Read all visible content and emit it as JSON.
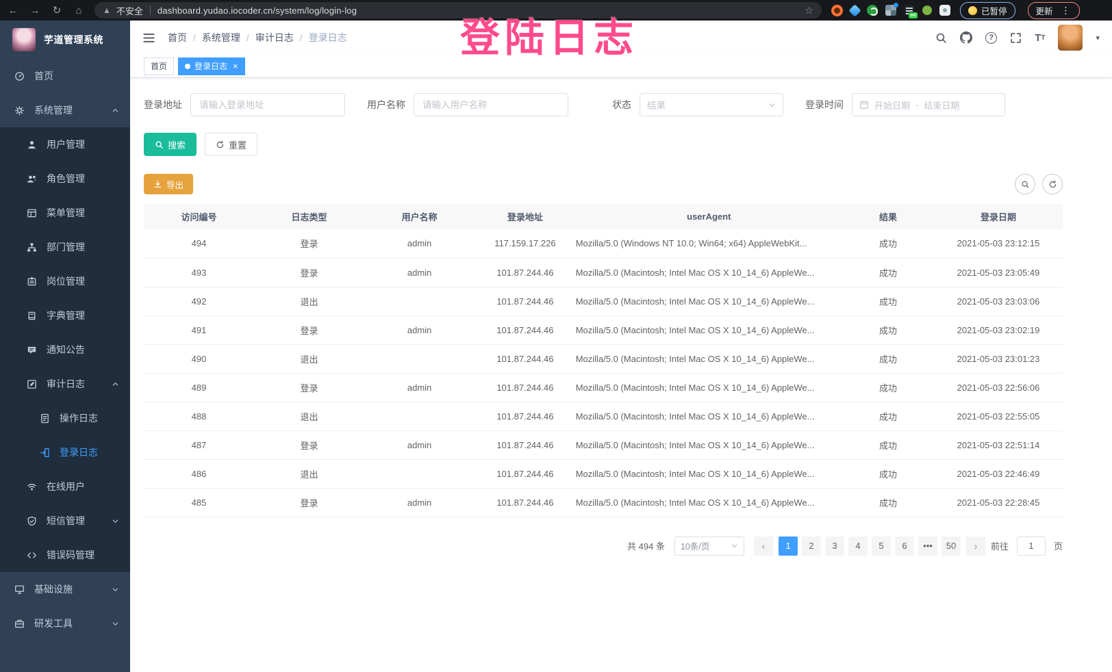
{
  "browser": {
    "security_label": "不安全",
    "url": "dashboard.yudao.iocoder.cn/system/log/login-log",
    "paused_badge": "已暂停",
    "update_badge": "更新"
  },
  "watermark_text": "登陆日志",
  "sidebar": {
    "app_title": "芋道管理系统",
    "items": [
      {
        "key": "home",
        "label": "首页",
        "icon": "dashboard-icon",
        "level": 1
      },
      {
        "key": "system-management",
        "label": "系统管理",
        "icon": "gear-icon",
        "level": 1,
        "arrow": "up"
      },
      {
        "key": "user-management",
        "label": "用户管理",
        "icon": "user-icon",
        "level": 2
      },
      {
        "key": "role-management",
        "label": "角色管理",
        "icon": "roles-icon",
        "level": 2
      },
      {
        "key": "menu-management",
        "label": "菜单管理",
        "icon": "menu-icon",
        "level": 2
      },
      {
        "key": "dept-management",
        "label": "部门管理",
        "icon": "dept-tree-icon",
        "level": 2
      },
      {
        "key": "post-management",
        "label": "岗位管理",
        "icon": "post-icon",
        "level": 2
      },
      {
        "key": "dict-management",
        "label": "字典管理",
        "icon": "dict-icon",
        "level": 2
      },
      {
        "key": "notice",
        "label": "通知公告",
        "icon": "notice-icon",
        "level": 2
      },
      {
        "key": "audit-log",
        "label": "审计日志",
        "icon": "audit-log-icon",
        "level": 2,
        "arrow": "up"
      },
      {
        "key": "operate-log",
        "label": "操作日志",
        "icon": "operate-log-icon",
        "level": 3
      },
      {
        "key": "login-log",
        "label": "登录日志",
        "icon": "login-log-icon",
        "level": 3,
        "active": true
      },
      {
        "key": "online-user",
        "label": "在线用户",
        "icon": "online-user-icon",
        "level": 2
      },
      {
        "key": "sms-management",
        "label": "短信管理",
        "icon": "sms-icon",
        "level": 2,
        "arrow": "down"
      },
      {
        "key": "error-code-management",
        "label": "错误码管理",
        "icon": "error-code-icon",
        "level": 2
      },
      {
        "key": "infrastructure",
        "label": "基础设施",
        "icon": "infra-icon",
        "level": 1,
        "arrow": "down"
      },
      {
        "key": "dev-tools",
        "label": "研发工具",
        "icon": "dev-tool-icon",
        "level": 1,
        "arrow": "down"
      }
    ]
  },
  "breadcrumb": [
    "首页",
    "系统管理",
    "审计日志",
    "登录日志"
  ],
  "tags": [
    {
      "key": "home",
      "label": "首页",
      "active": false,
      "closable": false
    },
    {
      "key": "login-log",
      "label": "登录日志",
      "active": true,
      "closable": true
    }
  ],
  "filters": {
    "address_label": "登录地址",
    "address_placeholder": "请输入登录地址",
    "username_label": "用户名称",
    "username_placeholder": "请输入用户名称",
    "status_label": "状态",
    "status_placeholder": "结果",
    "time_label": "登录时间",
    "start_placeholder": "开始日期",
    "range_separator": "-",
    "end_placeholder": "结束日期",
    "search_button": "搜索",
    "reset_button": "重置"
  },
  "toolbar": {
    "export_label": "导出"
  },
  "table": {
    "columns": [
      "访问编号",
      "日志类型",
      "用户名称",
      "登录地址",
      "userAgent",
      "结果",
      "登录日期"
    ],
    "rows": [
      {
        "id": "494",
        "type": "登录",
        "username": "admin",
        "ip": "117.159.17.226",
        "ua": "Mozilla/5.0 (Windows NT 10.0; Win64; x64) AppleWebKit...",
        "result": "成功",
        "date": "2021-05-03 23:12:15"
      },
      {
        "id": "493",
        "type": "登录",
        "username": "admin",
        "ip": "101.87.244.46",
        "ua": "Mozilla/5.0 (Macintosh; Intel Mac OS X 10_14_6) AppleWe...",
        "result": "成功",
        "date": "2021-05-03 23:05:49"
      },
      {
        "id": "492",
        "type": "退出",
        "username": "",
        "ip": "101.87.244.46",
        "ua": "Mozilla/5.0 (Macintosh; Intel Mac OS X 10_14_6) AppleWe...",
        "result": "成功",
        "date": "2021-05-03 23:03:06"
      },
      {
        "id": "491",
        "type": "登录",
        "username": "admin",
        "ip": "101.87.244.46",
        "ua": "Mozilla/5.0 (Macintosh; Intel Mac OS X 10_14_6) AppleWe...",
        "result": "成功",
        "date": "2021-05-03 23:02:19"
      },
      {
        "id": "490",
        "type": "退出",
        "username": "",
        "ip": "101.87.244.46",
        "ua": "Mozilla/5.0 (Macintosh; Intel Mac OS X 10_14_6) AppleWe...",
        "result": "成功",
        "date": "2021-05-03 23:01:23"
      },
      {
        "id": "489",
        "type": "登录",
        "username": "admin",
        "ip": "101.87.244.46",
        "ua": "Mozilla/5.0 (Macintosh; Intel Mac OS X 10_14_6) AppleWe...",
        "result": "成功",
        "date": "2021-05-03 22:56:06"
      },
      {
        "id": "488",
        "type": "退出",
        "username": "",
        "ip": "101.87.244.46",
        "ua": "Mozilla/5.0 (Macintosh; Intel Mac OS X 10_14_6) AppleWe...",
        "result": "成功",
        "date": "2021-05-03 22:55:05"
      },
      {
        "id": "487",
        "type": "登录",
        "username": "admin",
        "ip": "101.87.244.46",
        "ua": "Mozilla/5.0 (Macintosh; Intel Mac OS X 10_14_6) AppleWe...",
        "result": "成功",
        "date": "2021-05-03 22:51:14"
      },
      {
        "id": "486",
        "type": "退出",
        "username": "",
        "ip": "101.87.244.46",
        "ua": "Mozilla/5.0 (Macintosh; Intel Mac OS X 10_14_6) AppleWe...",
        "result": "成功",
        "date": "2021-05-03 22:46:49"
      },
      {
        "id": "485",
        "type": "登录",
        "username": "admin",
        "ip": "101.87.244.46",
        "ua": "Mozilla/5.0 (Macintosh; Intel Mac OS X 10_14_6) AppleWe...",
        "result": "成功",
        "date": "2021-05-03 22:28:45"
      }
    ]
  },
  "pagination": {
    "total_text": "共 494 条",
    "page_size": "10条/页",
    "pages": [
      "1",
      "2",
      "3",
      "4",
      "5",
      "6",
      "•••",
      "50"
    ],
    "active_page": "1",
    "goto_label": "前往",
    "goto_value": "1",
    "goto_unit": "页"
  },
  "theme": {
    "primary": "#409EFF",
    "sidebar_bg": "#304156",
    "submenu_bg": "#1F2D3D",
    "sidebar_text": "#BFCBD9",
    "search_button": "#1ABC9C",
    "export_button": "#E6A23C",
    "watermark_pink": "#FF4B8C",
    "table_header_bg": "#F8F8F9"
  }
}
